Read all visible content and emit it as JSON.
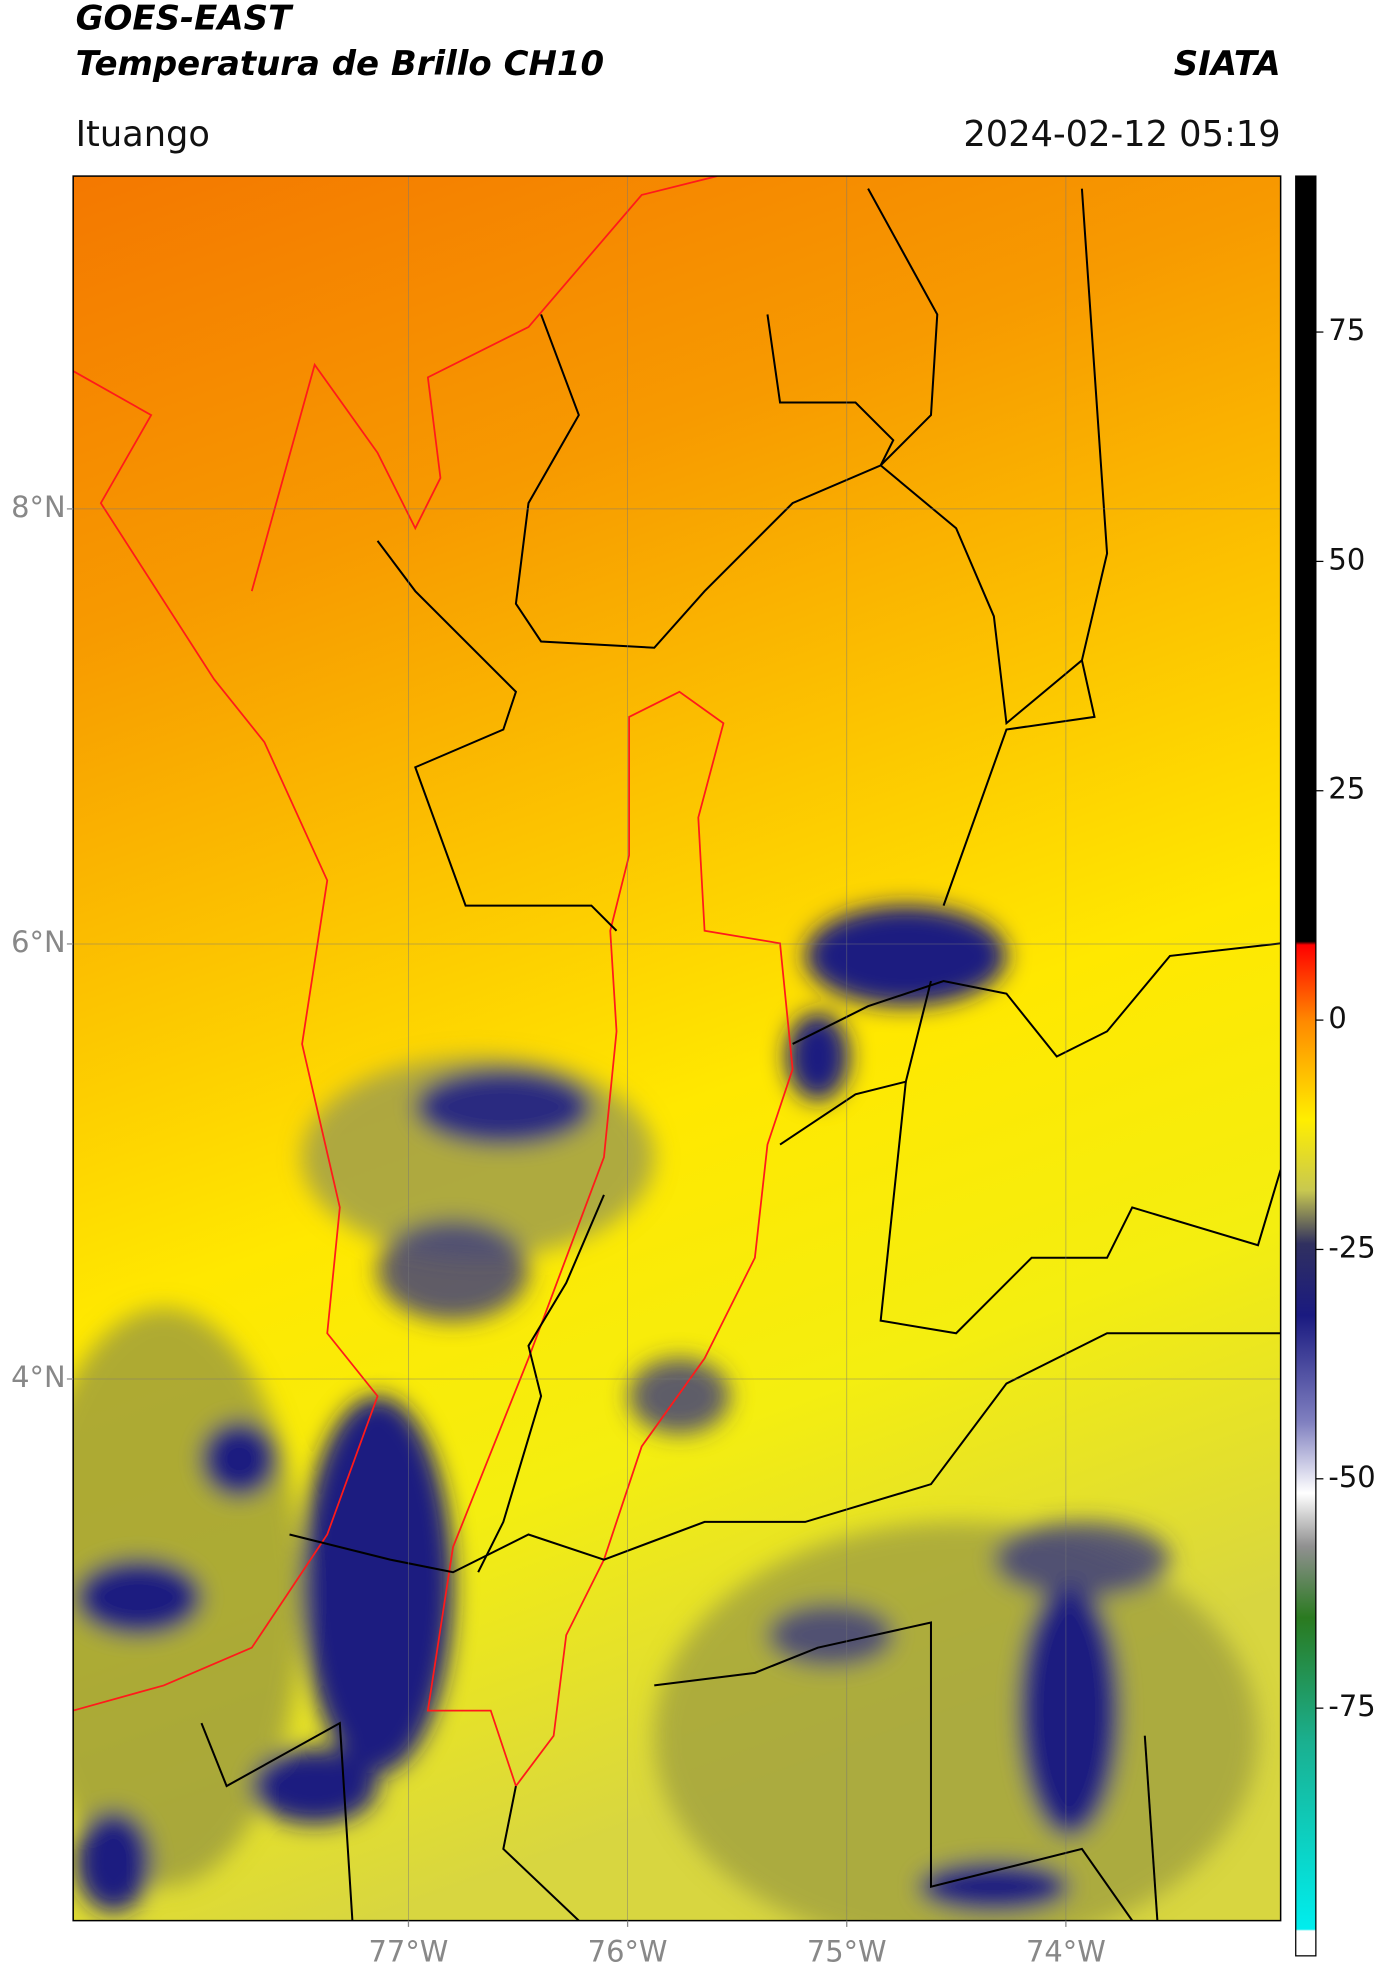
{
  "header": {
    "title": "GOES-EAST",
    "subtitle": "Temperatura de Brillo CH10",
    "source": "SIATA",
    "region": "Ituango",
    "datetime": "2024-02-12 05:19"
  },
  "map": {
    "xlim": [
      -78.53,
      -73.02
    ],
    "ylim": [
      1.51,
      9.53
    ],
    "xticks": [
      {
        "value": -77,
        "label": "77°W"
      },
      {
        "value": -76,
        "label": "76°W"
      },
      {
        "value": -75,
        "label": "75°W"
      },
      {
        "value": -74,
        "label": "74°W"
      }
    ],
    "yticks": [
      {
        "value": 8,
        "label": "8°N"
      },
      {
        "value": 6,
        "label": "6°N"
      },
      {
        "value": 4,
        "label": "4°N"
      }
    ],
    "grid": true
  },
  "colorbar": {
    "lim": [
      -102,
      92
    ],
    "ticks": [
      75,
      50,
      25,
      0,
      -25,
      -50,
      -75
    ]
  }
}
